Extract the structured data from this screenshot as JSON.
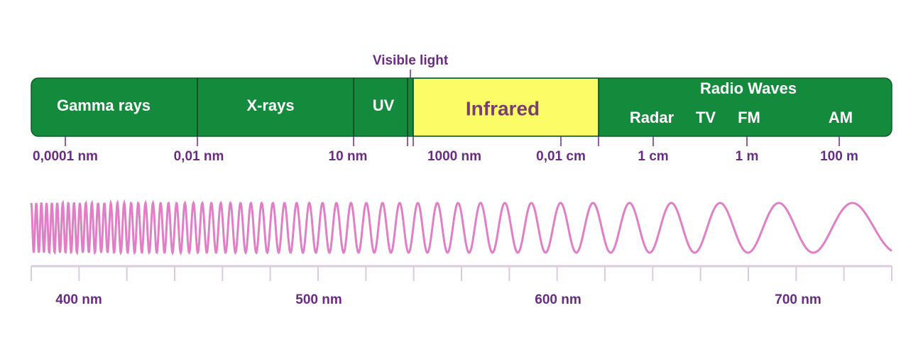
{
  "visible_label": "Visible light",
  "bands": [
    "Gamma rays",
    "X-rays",
    "UV",
    "Infrared"
  ],
  "radio": {
    "title": "Radio Waves",
    "subs": [
      "Radar",
      "TV",
      "FM",
      "AM"
    ]
  },
  "scale_labels": [
    "0,0001 nm",
    "0,01 nm",
    "10 nm",
    "1000 nm",
    "0,01 cm",
    "1 cm",
    "1 m",
    "100 m"
  ],
  "wave_labels": [
    "400 nm",
    "500 nm",
    "600 nm",
    "700 nm"
  ]
}
